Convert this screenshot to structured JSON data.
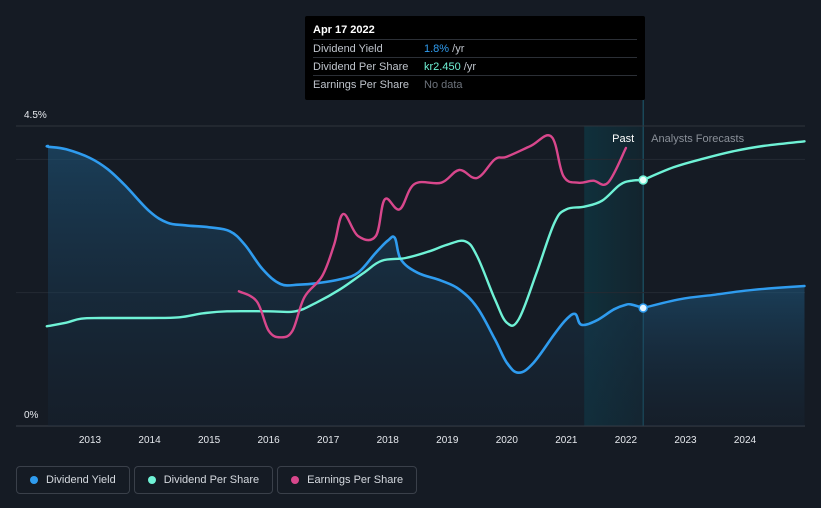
{
  "tooltip": {
    "date": "Apr 17 2022",
    "rows": [
      {
        "label": "Dividend Yield",
        "value": "1.8%",
        "unit": " /yr"
      },
      {
        "label": "Dividend Per Share",
        "value": "kr2.450",
        "unit": " /yr"
      },
      {
        "label": "Earnings Per Share",
        "value": "No data",
        "unit": ""
      }
    ]
  },
  "legend": [
    {
      "label": "Dividend Yield",
      "color": "#2f9cef"
    },
    {
      "label": "Dividend Per Share",
      "color": "#6ff2d6"
    },
    {
      "label": "Earnings Per Share",
      "color": "#d8478c"
    }
  ],
  "colors": {
    "background": "#151b24",
    "yield": "#2f9cef",
    "dps": "#6ff2d6",
    "eps": "#d8478c",
    "forecast_band": "#0f3440"
  },
  "chart_data": {
    "type": "line",
    "x_range": [
      2012.0,
      2025.0
    ],
    "ylim": [
      0,
      4.5
    ],
    "y_ticks": [
      {
        "value": 4.5,
        "label": "4.5%"
      },
      {
        "value": 0,
        "label": "0%"
      }
    ],
    "x_ticks": [
      "2013",
      "2014",
      "2015",
      "2016",
      "2017",
      "2018",
      "2019",
      "2020",
      "2021",
      "2022",
      "2023",
      "2024"
    ],
    "past_label": "Past",
    "forecast_label": "Analysts Forecasts",
    "forecast_start": 2022.29,
    "highlight_start": 2021.3,
    "series": [
      {
        "name": "Dividend Yield",
        "area": true,
        "points": [
          [
            2012.0,
            4.2
          ],
          [
            2012.3,
            4.19
          ],
          [
            2012.6,
            4.15
          ],
          [
            2013.0,
            4.02
          ],
          [
            2013.3,
            3.85
          ],
          [
            2013.6,
            3.6
          ],
          [
            2014.0,
            3.22
          ],
          [
            2014.3,
            3.05
          ],
          [
            2014.6,
            3.01
          ],
          [
            2015.0,
            2.98
          ],
          [
            2015.35,
            2.92
          ],
          [
            2015.6,
            2.72
          ],
          [
            2015.9,
            2.35
          ],
          [
            2016.2,
            2.13
          ],
          [
            2016.5,
            2.12
          ],
          [
            2016.8,
            2.14
          ],
          [
            2017.2,
            2.2
          ],
          [
            2017.5,
            2.3
          ],
          [
            2017.8,
            2.6
          ],
          [
            2018.0,
            2.78
          ],
          [
            2018.12,
            2.82
          ],
          [
            2018.22,
            2.5
          ],
          [
            2018.5,
            2.3
          ],
          [
            2018.9,
            2.18
          ],
          [
            2019.2,
            2.05
          ],
          [
            2019.5,
            1.78
          ],
          [
            2019.8,
            1.3
          ],
          [
            2020.0,
            0.95
          ],
          [
            2020.2,
            0.8
          ],
          [
            2020.45,
            0.95
          ],
          [
            2020.8,
            1.38
          ],
          [
            2021.0,
            1.6
          ],
          [
            2021.15,
            1.68
          ],
          [
            2021.25,
            1.52
          ],
          [
            2021.5,
            1.58
          ],
          [
            2021.8,
            1.75
          ],
          [
            2022.0,
            1.82
          ],
          [
            2022.1,
            1.82
          ],
          [
            2022.29,
            1.77
          ]
        ]
      },
      {
        "name": "Dividend Yield Forecast",
        "area": true,
        "points": [
          [
            2022.29,
            1.77
          ],
          [
            2022.9,
            1.9
          ],
          [
            2023.5,
            1.97
          ],
          [
            2024.0,
            2.03
          ],
          [
            2024.5,
            2.07
          ],
          [
            2025.0,
            2.1
          ]
        ]
      },
      {
        "name": "Dividend Per Share",
        "points": [
          [
            2012.0,
            1.5
          ],
          [
            2012.3,
            1.5
          ],
          [
            2012.6,
            1.55
          ],
          [
            2012.85,
            1.61
          ],
          [
            2013.2,
            1.62
          ],
          [
            2014.0,
            1.62
          ],
          [
            2014.5,
            1.63
          ],
          [
            2014.9,
            1.69
          ],
          [
            2015.3,
            1.72
          ],
          [
            2016.0,
            1.72
          ],
          [
            2016.45,
            1.72
          ],
          [
            2016.8,
            1.85
          ],
          [
            2017.2,
            2.05
          ],
          [
            2017.6,
            2.3
          ],
          [
            2017.9,
            2.48
          ],
          [
            2018.3,
            2.52
          ],
          [
            2018.7,
            2.62
          ],
          [
            2019.0,
            2.72
          ],
          [
            2019.3,
            2.77
          ],
          [
            2019.5,
            2.55
          ],
          [
            2019.8,
            1.9
          ],
          [
            2020.0,
            1.55
          ],
          [
            2020.2,
            1.6
          ],
          [
            2020.5,
            2.3
          ],
          [
            2020.8,
            3.05
          ],
          [
            2021.0,
            3.25
          ],
          [
            2021.3,
            3.29
          ],
          [
            2021.6,
            3.38
          ],
          [
            2021.9,
            3.62
          ],
          [
            2022.1,
            3.68
          ],
          [
            2022.29,
            3.69
          ]
        ]
      },
      {
        "name": "Dividend Per Share Forecast",
        "points": [
          [
            2022.29,
            3.69
          ],
          [
            2022.8,
            3.88
          ],
          [
            2023.3,
            4.01
          ],
          [
            2023.8,
            4.12
          ],
          [
            2024.3,
            4.2
          ],
          [
            2025.0,
            4.27
          ]
        ]
      },
      {
        "name": "Earnings Per Share",
        "points": [
          [
            2015.5,
            2.02
          ],
          [
            2015.8,
            1.87
          ],
          [
            2016.0,
            1.43
          ],
          [
            2016.2,
            1.33
          ],
          [
            2016.4,
            1.43
          ],
          [
            2016.6,
            1.93
          ],
          [
            2016.9,
            2.25
          ],
          [
            2017.1,
            2.72
          ],
          [
            2017.25,
            3.18
          ],
          [
            2017.5,
            2.85
          ],
          [
            2017.8,
            2.85
          ],
          [
            2017.95,
            3.4
          ],
          [
            2018.2,
            3.25
          ],
          [
            2018.45,
            3.63
          ],
          [
            2018.9,
            3.65
          ],
          [
            2019.2,
            3.84
          ],
          [
            2019.5,
            3.72
          ],
          [
            2019.8,
            4.0
          ],
          [
            2020.0,
            4.04
          ],
          [
            2020.4,
            4.2
          ],
          [
            2020.75,
            4.34
          ],
          [
            2020.95,
            3.75
          ],
          [
            2021.2,
            3.65
          ],
          [
            2021.45,
            3.68
          ],
          [
            2021.7,
            3.65
          ],
          [
            2022.0,
            4.17
          ]
        ]
      }
    ]
  }
}
